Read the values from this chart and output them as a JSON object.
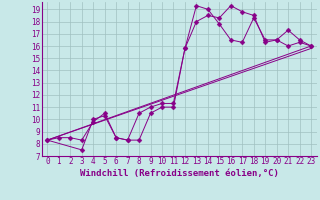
{
  "bg_color": "#c8e8e8",
  "grid_color": "#a0c0c0",
  "line_color": "#880088",
  "marker": "D",
  "markersize": 2.5,
  "xlabel": "Windchill (Refroidissement éolien,°C)",
  "xlabel_fontsize": 6.5,
  "tick_fontsize": 5.5,
  "xlim": [
    -0.5,
    23.5
  ],
  "ylim": [
    7,
    19.6
  ],
  "yticks": [
    7,
    8,
    9,
    10,
    11,
    12,
    13,
    14,
    15,
    16,
    17,
    18,
    19
  ],
  "xticks": [
    0,
    1,
    2,
    3,
    4,
    5,
    6,
    7,
    8,
    9,
    10,
    11,
    12,
    13,
    14,
    15,
    16,
    17,
    18,
    19,
    20,
    21,
    22,
    23
  ],
  "series1_x": [
    0,
    1,
    2,
    3,
    4,
    5,
    6,
    7,
    8,
    9,
    10,
    11,
    12,
    13,
    14,
    15,
    16,
    17,
    18,
    19,
    20,
    21,
    22,
    23
  ],
  "series1_y": [
    8.3,
    8.5,
    8.5,
    8.3,
    9.8,
    10.5,
    8.5,
    8.3,
    8.3,
    10.5,
    11.0,
    11.0,
    15.8,
    18.0,
    18.5,
    18.3,
    19.3,
    18.8,
    18.5,
    16.3,
    16.5,
    17.3,
    16.5,
    16.0
  ],
  "series2_x": [
    0,
    3,
    4,
    5,
    6,
    7,
    8,
    9,
    10,
    11,
    12,
    13,
    14,
    15,
    16,
    17,
    18,
    19,
    20,
    21,
    22,
    23
  ],
  "series2_y": [
    8.3,
    7.5,
    10.0,
    10.3,
    8.5,
    8.3,
    10.5,
    11.0,
    11.3,
    11.3,
    15.8,
    19.3,
    19.0,
    17.8,
    16.5,
    16.3,
    18.3,
    16.5,
    16.5,
    16.0,
    16.3,
    16.0
  ],
  "line1_x": [
    0,
    23
  ],
  "line1_y": [
    8.3,
    15.8
  ],
  "line2_x": [
    0,
    23
  ],
  "line2_y": [
    8.3,
    16.0
  ]
}
